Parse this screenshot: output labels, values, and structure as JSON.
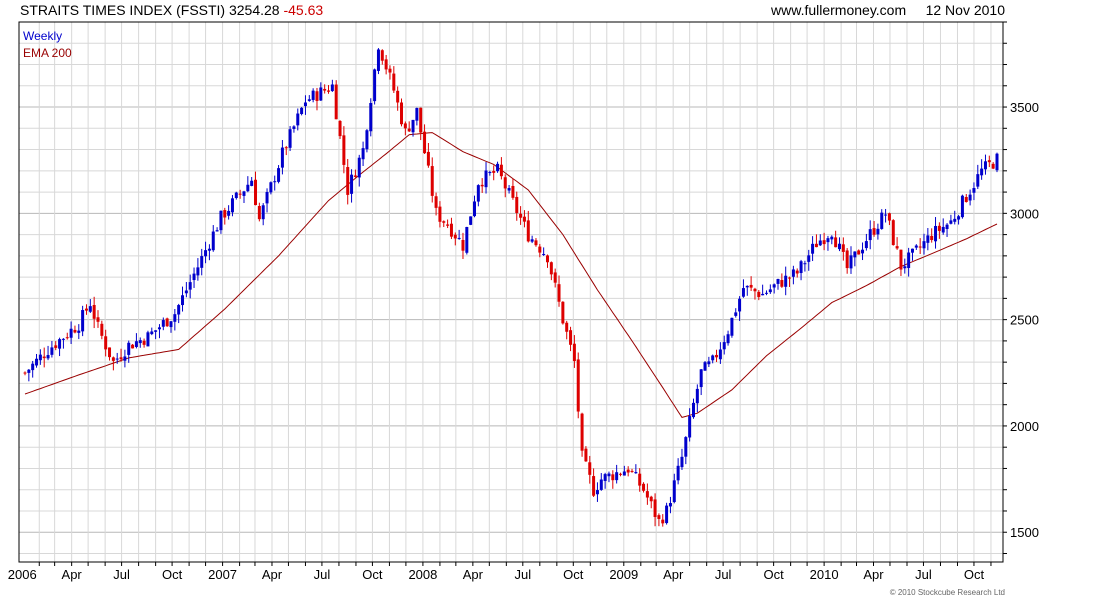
{
  "header": {
    "index_name": "STRAITS TIMES INDEX (FSSTI)",
    "last_value": "3254.28",
    "change": "-45.63",
    "site": "www.fullermoney.com",
    "date": "12 Nov 2010"
  },
  "legend": {
    "weekly_label": "Weekly",
    "ema_label": "EMA 200"
  },
  "copyright": "© 2010 Stockcube Research Ltd",
  "colors": {
    "up": "#0000cc",
    "down": "#dd0000",
    "ema": "#990000",
    "grid": "#d8d8d8",
    "axis": "#000000"
  },
  "chart_data": {
    "type": "candlestick",
    "title": "STRAITS TIMES INDEX (FSSTI)",
    "x_start": "2006-01-06",
    "x_end": "2010-11-12",
    "ylim": [
      1360,
      3900
    ],
    "y_ticks": [
      1500,
      2000,
      2500,
      3000,
      3500
    ],
    "grid": true,
    "legend_position": "top-left",
    "x_tick_labels": [
      {
        "label": "2006",
        "date": "2006-01-01"
      },
      {
        "label": "Apr",
        "date": "2006-04-01"
      },
      {
        "label": "Jul",
        "date": "2006-07-01"
      },
      {
        "label": "Oct",
        "date": "2006-10-01"
      },
      {
        "label": "2007",
        "date": "2007-01-01"
      },
      {
        "label": "Apr",
        "date": "2007-04-01"
      },
      {
        "label": "Jul",
        "date": "2007-07-01"
      },
      {
        "label": "Oct",
        "date": "2007-10-01"
      },
      {
        "label": "2008",
        "date": "2008-01-01"
      },
      {
        "label": "Apr",
        "date": "2008-04-01"
      },
      {
        "label": "Jul",
        "date": "2008-07-01"
      },
      {
        "label": "Oct",
        "date": "2008-10-01"
      },
      {
        "label": "2009",
        "date": "2009-01-01"
      },
      {
        "label": "Apr",
        "date": "2009-04-01"
      },
      {
        "label": "Jul",
        "date": "2009-07-01"
      },
      {
        "label": "Oct",
        "date": "2009-10-01"
      },
      {
        "label": "2010",
        "date": "2010-01-01"
      },
      {
        "label": "Apr",
        "date": "2010-04-01"
      },
      {
        "label": "Jul",
        "date": "2010-07-01"
      },
      {
        "label": "Oct",
        "date": "2010-10-01"
      }
    ],
    "price_keypoints": [
      [
        "2006-01-06",
        2250
      ],
      [
        "2006-02-17",
        2360
      ],
      [
        "2006-04-14",
        2480
      ],
      [
        "2006-05-05",
        2580
      ],
      [
        "2006-05-19",
        2460
      ],
      [
        "2006-06-16",
        2300
      ],
      [
        "2006-07-14",
        2380
      ],
      [
        "2006-08-18",
        2420
      ],
      [
        "2006-10-06",
        2530
      ],
      [
        "2006-11-17",
        2750
      ],
      [
        "2006-12-29",
        2980
      ],
      [
        "2007-02-23",
        3160
      ],
      [
        "2007-03-09",
        2970
      ],
      [
        "2007-04-20",
        3280
      ],
      [
        "2007-06-01",
        3530
      ],
      [
        "2007-07-20",
        3600
      ],
      [
        "2007-08-17",
        3110
      ],
      [
        "2007-09-14",
        3300
      ],
      [
        "2007-10-12",
        3800
      ],
      [
        "2007-11-09",
        3580
      ],
      [
        "2007-11-30",
        3380
      ],
      [
        "2007-12-21",
        3480
      ],
      [
        "2008-01-25",
        3000
      ],
      [
        "2008-02-15",
        2950
      ],
      [
        "2008-03-14",
        2850
      ],
      [
        "2008-04-11",
        3150
      ],
      [
        "2008-05-16",
        3200
      ],
      [
        "2008-06-13",
        3050
      ],
      [
        "2008-07-11",
        2900
      ],
      [
        "2008-08-15",
        2800
      ],
      [
        "2008-09-12",
        2500
      ],
      [
        "2008-10-03",
        2300
      ],
      [
        "2008-10-17",
        1850
      ],
      [
        "2008-11-07",
        1700
      ],
      [
        "2008-11-21",
        1750
      ],
      [
        "2009-01-09",
        1800
      ],
      [
        "2009-02-06",
        1700
      ],
      [
        "2009-03-06",
        1550
      ],
      [
        "2009-03-20",
        1600
      ],
      [
        "2009-04-17",
        1850
      ],
      [
        "2009-05-08",
        2100
      ],
      [
        "2009-05-22",
        2250
      ],
      [
        "2009-06-12",
        2300
      ],
      [
        "2009-07-10",
        2450
      ],
      [
        "2009-08-07",
        2650
      ],
      [
        "2009-09-11",
        2620
      ],
      [
        "2009-10-16",
        2680
      ],
      [
        "2009-11-13",
        2720
      ],
      [
        "2009-12-18",
        2860
      ],
      [
        "2010-01-15",
        2920
      ],
      [
        "2010-02-12",
        2740
      ],
      [
        "2010-03-19",
        2880
      ],
      [
        "2010-04-23",
        3000
      ],
      [
        "2010-05-21",
        2750
      ],
      [
        "2010-06-11",
        2800
      ],
      [
        "2010-07-16",
        2900
      ],
      [
        "2010-08-20",
        2960
      ],
      [
        "2010-09-17",
        3080
      ],
      [
        "2010-10-15",
        3200
      ],
      [
        "2010-11-05",
        3240
      ],
      [
        "2010-11-12",
        3254
      ]
    ],
    "ema_keypoints": [
      [
        "2006-01-06",
        2150
      ],
      [
        "2006-04-14",
        2240
      ],
      [
        "2006-07-14",
        2320
      ],
      [
        "2006-10-13",
        2360
      ],
      [
        "2007-01-05",
        2550
      ],
      [
        "2007-04-13",
        2800
      ],
      [
        "2007-07-13",
        3060
      ],
      [
        "2007-09-07",
        3180
      ],
      [
        "2007-10-26",
        3280
      ],
      [
        "2007-12-07",
        3370
      ],
      [
        "2008-01-18",
        3380
      ],
      [
        "2008-03-14",
        3290
      ],
      [
        "2008-05-09",
        3230
      ],
      [
        "2008-07-11",
        3110
      ],
      [
        "2008-09-12",
        2900
      ],
      [
        "2008-11-14",
        2640
      ],
      [
        "2009-01-16",
        2400
      ],
      [
        "2009-03-13",
        2180
      ],
      [
        "2009-04-17",
        2040
      ],
      [
        "2009-05-15",
        2060
      ],
      [
        "2009-07-17",
        2170
      ],
      [
        "2009-09-18",
        2330
      ],
      [
        "2009-11-20",
        2460
      ],
      [
        "2010-01-15",
        2580
      ],
      [
        "2010-03-19",
        2660
      ],
      [
        "2010-05-21",
        2750
      ],
      [
        "2010-07-16",
        2810
      ],
      [
        "2010-09-17",
        2880
      ],
      [
        "2010-11-12",
        2950
      ]
    ]
  }
}
